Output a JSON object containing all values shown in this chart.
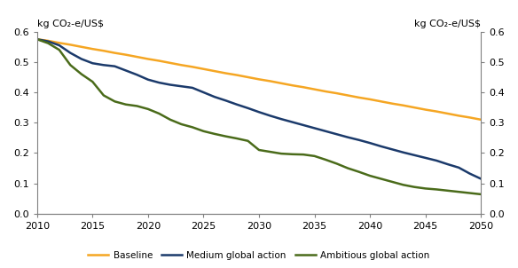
{
  "ylabel_left": "kg CO₂-e/US$",
  "ylabel_right": "kg CO₂-e/US$",
  "xlim": [
    2010,
    2050
  ],
  "ylim": [
    0,
    0.6
  ],
  "yticks": [
    0,
    0.1,
    0.2,
    0.3,
    0.4,
    0.5,
    0.6
  ],
  "xticks": [
    2010,
    2015,
    2020,
    2025,
    2030,
    2035,
    2040,
    2045,
    2050
  ],
  "baseline_color": "#F5A623",
  "medium_color": "#1B3A6B",
  "ambitious_color": "#4A6B1A",
  "legend_labels": [
    "Baseline",
    "Medium global action",
    "Ambitious global action"
  ],
  "baseline": {
    "years": [
      2010,
      2011,
      2012,
      2013,
      2014,
      2015,
      2016,
      2017,
      2018,
      2019,
      2020,
      2021,
      2022,
      2023,
      2024,
      2025,
      2026,
      2027,
      2028,
      2029,
      2030,
      2031,
      2032,
      2033,
      2034,
      2035,
      2036,
      2037,
      2038,
      2039,
      2040,
      2041,
      2042,
      2043,
      2044,
      2045,
      2046,
      2047,
      2048,
      2049,
      2050
    ],
    "values": [
      0.575,
      0.57,
      0.563,
      0.557,
      0.55,
      0.543,
      0.537,
      0.53,
      0.524,
      0.517,
      0.51,
      0.504,
      0.497,
      0.49,
      0.484,
      0.477,
      0.47,
      0.463,
      0.457,
      0.45,
      0.443,
      0.437,
      0.43,
      0.423,
      0.417,
      0.41,
      0.403,
      0.397,
      0.39,
      0.383,
      0.377,
      0.37,
      0.363,
      0.357,
      0.35,
      0.343,
      0.337,
      0.33,
      0.323,
      0.317,
      0.31
    ]
  },
  "medium": {
    "years": [
      2010,
      2011,
      2012,
      2013,
      2014,
      2015,
      2016,
      2017,
      2018,
      2019,
      2020,
      2021,
      2022,
      2023,
      2024,
      2025,
      2026,
      2027,
      2028,
      2029,
      2030,
      2031,
      2032,
      2033,
      2034,
      2035,
      2036,
      2037,
      2038,
      2039,
      2040,
      2041,
      2042,
      2043,
      2044,
      2045,
      2046,
      2047,
      2048,
      2049,
      2050
    ],
    "values": [
      0.575,
      0.568,
      0.555,
      0.53,
      0.51,
      0.496,
      0.49,
      0.486,
      0.472,
      0.458,
      0.442,
      0.432,
      0.425,
      0.42,
      0.415,
      0.4,
      0.385,
      0.373,
      0.36,
      0.348,
      0.335,
      0.323,
      0.312,
      0.302,
      0.292,
      0.282,
      0.272,
      0.262,
      0.252,
      0.243,
      0.233,
      0.222,
      0.212,
      0.202,
      0.193,
      0.184,
      0.175,
      0.163,
      0.152,
      0.132,
      0.115
    ]
  },
  "ambitious": {
    "years": [
      2010,
      2011,
      2012,
      2013,
      2014,
      2015,
      2016,
      2017,
      2018,
      2019,
      2020,
      2021,
      2022,
      2023,
      2024,
      2025,
      2026,
      2027,
      2028,
      2029,
      2030,
      2031,
      2032,
      2033,
      2034,
      2035,
      2036,
      2037,
      2038,
      2039,
      2040,
      2041,
      2042,
      2043,
      2044,
      2045,
      2046,
      2047,
      2048,
      2049,
      2050
    ],
    "values": [
      0.575,
      0.562,
      0.54,
      0.49,
      0.46,
      0.435,
      0.39,
      0.37,
      0.36,
      0.355,
      0.345,
      0.33,
      0.31,
      0.295,
      0.285,
      0.272,
      0.263,
      0.255,
      0.248,
      0.24,
      0.21,
      0.204,
      0.198,
      0.196,
      0.195,
      0.19,
      0.178,
      0.165,
      0.15,
      0.138,
      0.125,
      0.115,
      0.105,
      0.095,
      0.088,
      0.083,
      0.08,
      0.076,
      0.072,
      0.068,
      0.064
    ]
  },
  "spine_color": "#808080",
  "tick_color": "#808080",
  "label_fontsize": 8,
  "tick_fontsize": 8,
  "linewidth": 1.8
}
